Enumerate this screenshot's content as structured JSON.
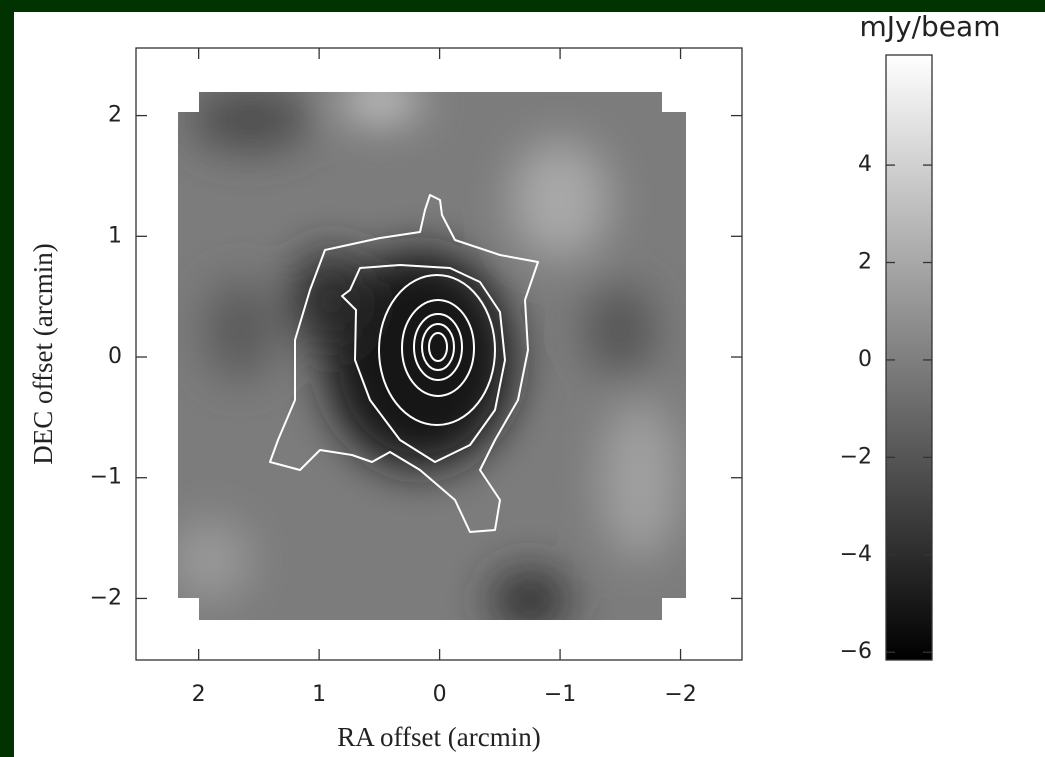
{
  "chart_data": {
    "type": "image",
    "xlabel": "RA offset (arcmin)",
    "ylabel": "DEC offset (arcmin)",
    "xlim": [
      2.52,
      -2.51
    ],
    "ylim": [
      -2.51,
      2.56
    ],
    "xticks": [
      2,
      1,
      0,
      {
        "value": -1,
        "label": "−1"
      },
      {
        "value": -2,
        "label": "−2"
      }
    ],
    "yticks": [
      2,
      1,
      0,
      {
        "value": -1,
        "label": "−1"
      },
      {
        "value": -2,
        "label": "−2"
      }
    ],
    "colorbar": {
      "label": "mJy/beam",
      "lim": [
        -6.16,
        6.26
      ],
      "ticks": [
        4,
        2,
        0,
        {
          "value": -2,
          "label": "−2"
        },
        {
          "value": -4,
          "label": "−4"
        },
        {
          "value": -6,
          "label": "−6"
        }
      ]
    }
  }
}
